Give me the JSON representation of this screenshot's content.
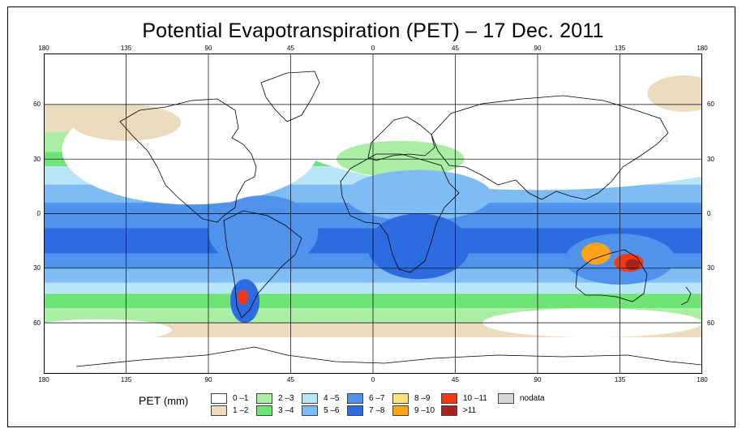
{
  "title": "Potential Evapotranspiration (PET) – 17 Dec. 2011",
  "axes": {
    "lon_ticks": [
      "180",
      "135",
      "90",
      "45",
      "0",
      "45",
      "90",
      "135",
      "180"
    ],
    "lat_ticks": [
      "60",
      "30",
      "0",
      "30",
      "60"
    ],
    "lon_values": [
      -180,
      -135,
      -90,
      -45,
      0,
      45,
      90,
      135,
      180
    ],
    "lat_values": [
      60,
      30,
      0,
      -30,
      -60
    ],
    "lat_range": [
      -88,
      88
    ]
  },
  "legend": {
    "label": "PET",
    "unit": "(mm)",
    "classes": [
      {
        "label": "0 –1",
        "color": "#ffffff"
      },
      {
        "label": "1 –2",
        "color": "#ecdcbf"
      },
      {
        "label": "2 –3",
        "color": "#a9eea4"
      },
      {
        "label": "3 –4",
        "color": "#6fe476"
      },
      {
        "label": "4 –5",
        "color": "#b8e5f7"
      },
      {
        "label": "5 –6",
        "color": "#7fbcf3"
      },
      {
        "label": "6 –7",
        "color": "#4f93ec"
      },
      {
        "label": "7 –8",
        "color": "#2c6be0"
      },
      {
        "label": "8 –9",
        "color": "#ffe27c"
      },
      {
        "label": "9 –10",
        "color": "#ffa31a"
      },
      {
        "label": "10 –11",
        "color": "#f23a12"
      },
      {
        "label": ">11",
        "color": "#a8221f"
      },
      {
        "label": "nodata",
        "color": "#d6d6d6"
      }
    ]
  }
}
